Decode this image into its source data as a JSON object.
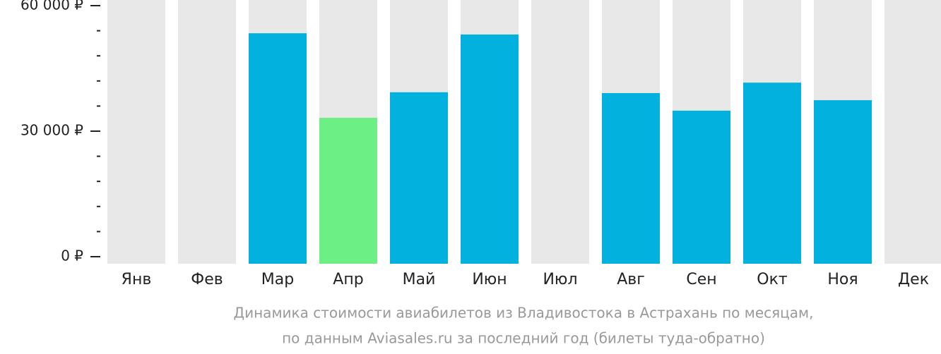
{
  "chart_data": {
    "type": "bar",
    "caption": [
      "Динамика стоимости авиабилетов из Владивостока в Астрахань по месяцам,",
      "по данным Aviasales.ru за последний год (билеты туда-обратно)"
    ],
    "categories": [
      "Янв",
      "Фев",
      "Мар",
      "Апр",
      "Май",
      "Июн",
      "Июл",
      "Авг",
      "Сен",
      "Окт",
      "Ноя",
      "Дек"
    ],
    "values": [
      null,
      null,
      53400,
      33200,
      39300,
      53100,
      null,
      39100,
      34900,
      41600,
      37400,
      null
    ],
    "colors": [
      null,
      null,
      "#02b1dd",
      "#6cf086",
      "#02b1dd",
      "#02b1dd",
      null,
      "#02b1dd",
      "#02b1dd",
      "#02b1dd",
      "#02b1dd",
      null
    ],
    "background_color": "#e8e8e8",
    "ylim": [
      0,
      60000
    ],
    "yticks": [
      {
        "value": 0,
        "label": "0 ₽"
      },
      {
        "value": 30000,
        "label": "30 000 ₽"
      },
      {
        "value": 60000,
        "label": "60 000 ₽"
      }
    ],
    "minor_yticks": [
      6000,
      12000,
      18000,
      24000,
      36000,
      42000,
      48000,
      54000
    ]
  }
}
